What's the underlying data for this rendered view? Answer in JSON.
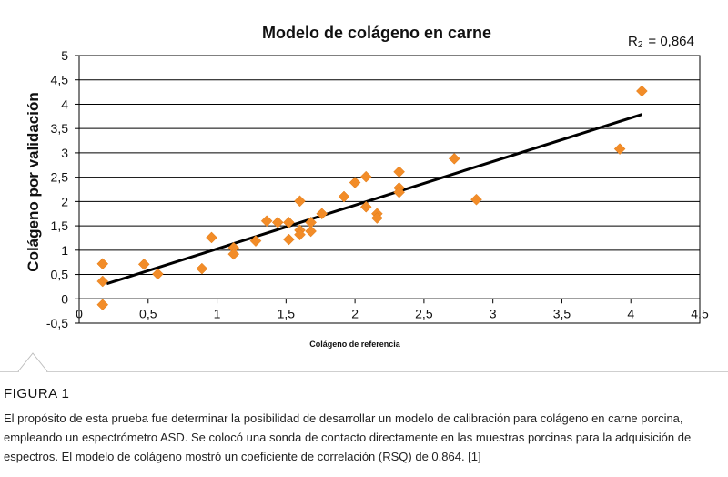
{
  "chart_data": {
    "type": "scatter",
    "title": "Modelo de colágeno en carne",
    "annotation": {
      "label": "R",
      "subscript": "2",
      "value": "= 0,864"
    },
    "xlabel": "Colágeno de referencia",
    "ylabel": "Colágeno por validación",
    "xlim": [
      0,
      4.5
    ],
    "ylim": [
      -0.5,
      5
    ],
    "x_ticks": [
      "0",
      "0,5",
      "1",
      "1,5",
      "2",
      "2,5",
      "3",
      "3,5",
      "4",
      "4,5"
    ],
    "y_ticks": [
      "-0,5",
      "0",
      "0,5",
      "1",
      "1,5",
      "2",
      "2,5",
      "3",
      "3,5",
      "4",
      "4,5",
      "5"
    ],
    "grid": "horizontal",
    "marker_color": "#F28C28",
    "trendline_color": "#000000",
    "points": [
      {
        "x": 0.17,
        "y": 0.72
      },
      {
        "x": 0.17,
        "y": 0.36
      },
      {
        "x": 0.17,
        "y": -0.12
      },
      {
        "x": 0.47,
        "y": 0.71
      },
      {
        "x": 0.57,
        "y": 0.51
      },
      {
        "x": 0.89,
        "y": 0.62
      },
      {
        "x": 0.96,
        "y": 1.26
      },
      {
        "x": 1.12,
        "y": 1.05
      },
      {
        "x": 1.12,
        "y": 0.92
      },
      {
        "x": 1.28,
        "y": 1.19
      },
      {
        "x": 1.36,
        "y": 1.6
      },
      {
        "x": 1.44,
        "y": 1.57
      },
      {
        "x": 1.52,
        "y": 1.57
      },
      {
        "x": 1.52,
        "y": 1.22
      },
      {
        "x": 1.6,
        "y": 2.01
      },
      {
        "x": 1.6,
        "y": 1.41
      },
      {
        "x": 1.6,
        "y": 1.32
      },
      {
        "x": 1.68,
        "y": 1.57
      },
      {
        "x": 1.68,
        "y": 1.39
      },
      {
        "x": 1.76,
        "y": 1.75
      },
      {
        "x": 1.92,
        "y": 2.1
      },
      {
        "x": 2.0,
        "y": 2.39
      },
      {
        "x": 2.08,
        "y": 2.51
      },
      {
        "x": 2.08,
        "y": 1.89
      },
      {
        "x": 2.16,
        "y": 1.75
      },
      {
        "x": 2.16,
        "y": 1.66
      },
      {
        "x": 2.32,
        "y": 2.61
      },
      {
        "x": 2.32,
        "y": 2.28
      },
      {
        "x": 2.32,
        "y": 2.19
      },
      {
        "x": 2.72,
        "y": 2.88
      },
      {
        "x": 2.88,
        "y": 2.04
      },
      {
        "x": 3.92,
        "y": 3.08
      },
      {
        "x": 4.08,
        "y": 4.27
      }
    ],
    "trendline": {
      "x": [
        0.2,
        4.08
      ],
      "y": [
        0.31,
        3.79
      ]
    }
  },
  "figure": {
    "label": "FIGURA 1",
    "caption": "El propósito de esta prueba fue determinar la posibilidad de desarrollar un modelo de calibración para colágeno en carne porcina, empleando un espectrómetro ASD. Se colocó una sonda de contacto directamente en las muestras porcinas para la adquisición de espectros. El modelo de colágeno mostró un coeficiente de correlación (RSQ) de 0,864. [1]"
  }
}
